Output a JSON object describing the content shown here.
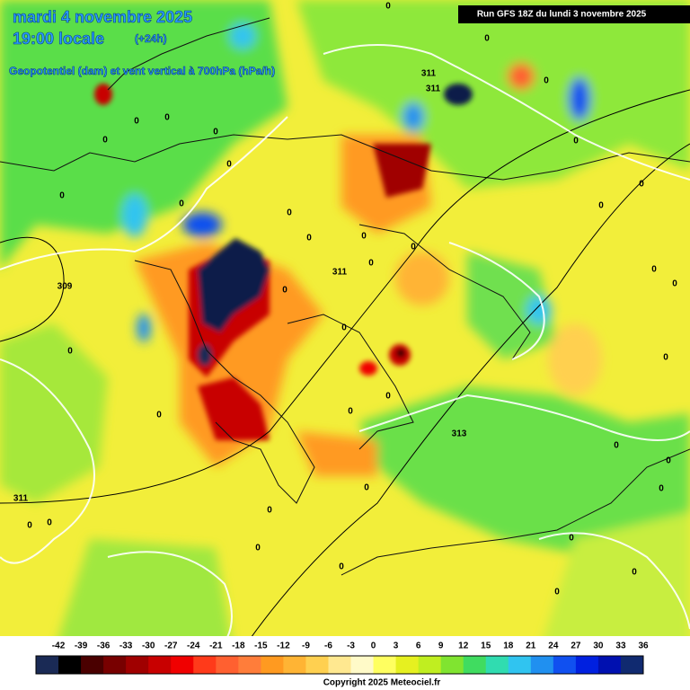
{
  "header": {
    "date": "mardi 4 novembre 2025",
    "time": "19:00 locale",
    "lead": "(+24h)",
    "subtitle": "Geopotentiel (dam) et vent vertical à 700hPa (hPa/h)",
    "run": "Run GFS 18Z du lundi 3 novembre 2025"
  },
  "contour_labels": [
    "0",
    "0",
    "311",
    "311",
    "0",
    "0",
    "0",
    "0",
    "0",
    "0",
    "0",
    "0",
    "0",
    "0",
    "0",
    "0",
    "0",
    "0",
    "0",
    "0",
    "311",
    "0",
    "0",
    "309",
    "0",
    "0",
    "0",
    "0",
    "0",
    "0",
    "0",
    "313",
    "0",
    "0",
    "0",
    "0",
    "311",
    "0",
    "0",
    "0",
    "0",
    "0",
    "0",
    "0",
    "0",
    "0"
  ],
  "colorbar": {
    "ticks": [
      -42,
      -39,
      -36,
      -33,
      -30,
      -27,
      -24,
      -21,
      -18,
      -15,
      -12,
      -9,
      -6,
      -3,
      0,
      3,
      6,
      9,
      12,
      15,
      18,
      21,
      24,
      27,
      30,
      33,
      36
    ],
    "colors": [
      "#1a2a55",
      "#000000",
      "#4a0000",
      "#780000",
      "#a00000",
      "#c80000",
      "#f00000",
      "#ff3a1a",
      "#ff6030",
      "#ff7d3a",
      "#ff9a20",
      "#ffb434",
      "#ffd050",
      "#ffe890",
      "#fffac8",
      "#ffff60",
      "#e6f020",
      "#c0ee20",
      "#80e430",
      "#40dc60",
      "#30dcb0",
      "#30c4f0",
      "#2090f0",
      "#1050f0",
      "#0020e0",
      "#0010b0",
      "#102a70"
    ]
  },
  "footer": {
    "copyright": "Copyright 2025 Meteociel.fr"
  }
}
